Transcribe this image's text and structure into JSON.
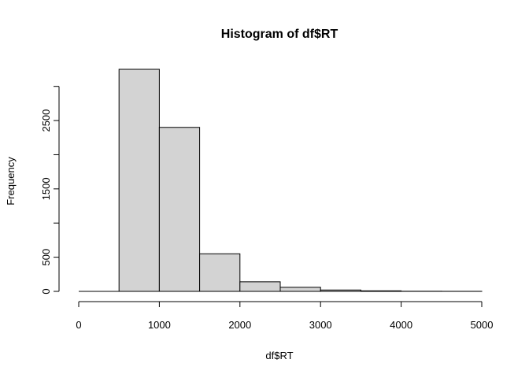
{
  "chart_data": {
    "type": "bar",
    "title": "Histogram of df$RT",
    "xlabel": "df$RT",
    "ylabel": "Frequency",
    "bins": [
      {
        "from": 500,
        "to": 1000,
        "count": 3250
      },
      {
        "from": 1000,
        "to": 1500,
        "count": 2400
      },
      {
        "from": 1500,
        "to": 2000,
        "count": 550
      },
      {
        "from": 2000,
        "to": 2500,
        "count": 140
      },
      {
        "from": 2500,
        "to": 3000,
        "count": 60
      },
      {
        "from": 3000,
        "to": 3500,
        "count": 20
      },
      {
        "from": 3500,
        "to": 4000,
        "count": 8
      },
      {
        "from": 4000,
        "to": 4500,
        "count": 2
      },
      {
        "from": 4500,
        "to": 5000,
        "count": 1
      }
    ],
    "xlim": [
      0,
      5000
    ],
    "ylim": [
      0,
      3250
    ],
    "x_ticks": [
      "0",
      "1000",
      "2000",
      "3000",
      "4000",
      "5000"
    ],
    "y_ticks": [
      "0",
      "500",
      "1500",
      "2500"
    ],
    "y_ticks_minor": [
      1000,
      2000,
      3000
    ],
    "bar_fill": "#d3d3d3",
    "bar_stroke": "#000000",
    "grid": false,
    "legend": "none"
  }
}
